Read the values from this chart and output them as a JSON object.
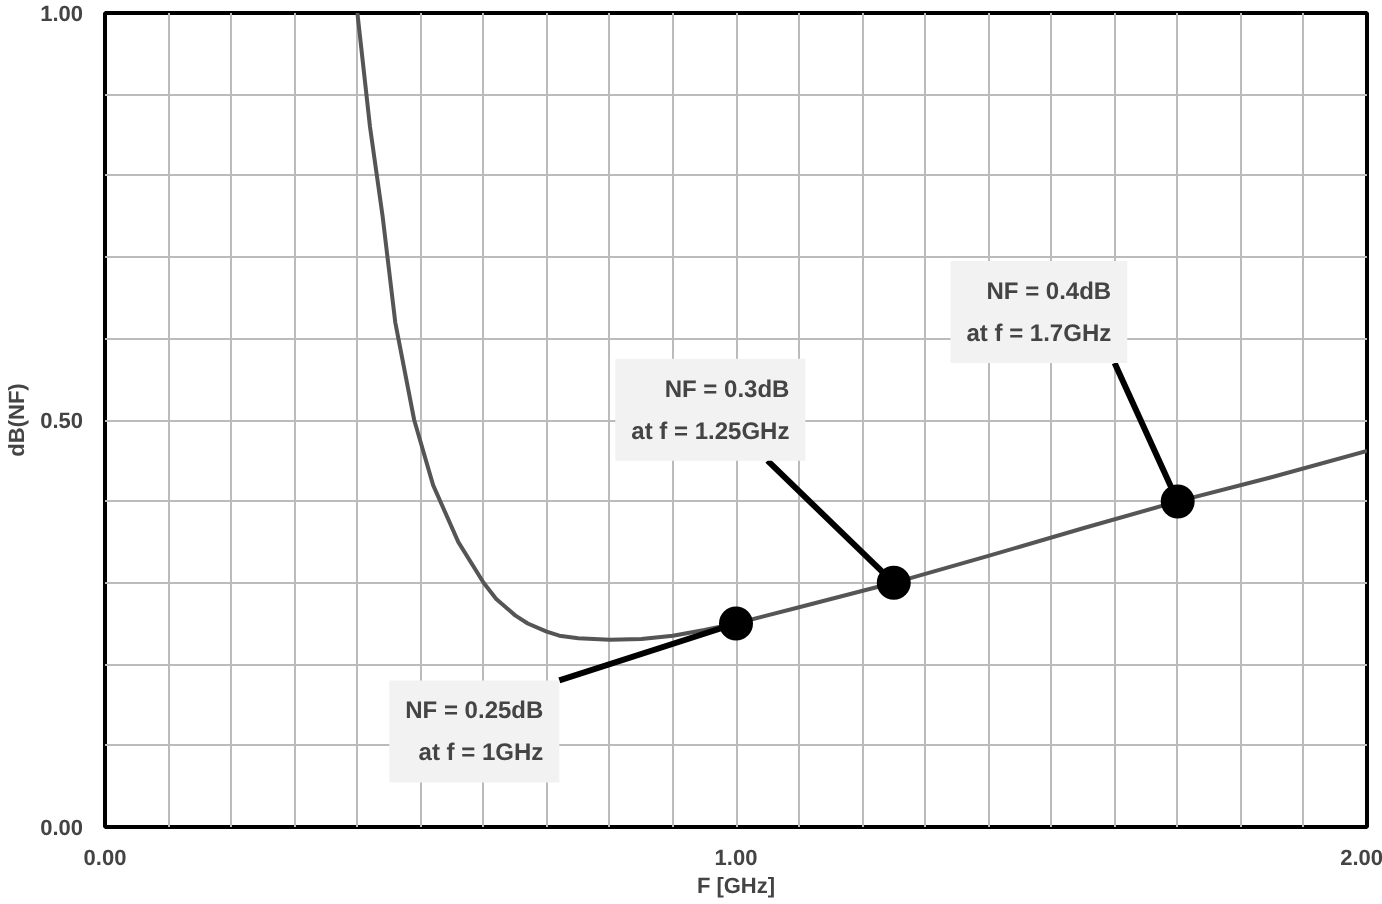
{
  "chart_data": {
    "type": "line",
    "xlabel": "F [GHz]",
    "ylabel": "dB(NF)",
    "xlim": [
      0,
      2
    ],
    "ylim": [
      0,
      1
    ],
    "xticks": [
      {
        "value": 0,
        "label": "0.00"
      },
      {
        "value": 0.1,
        "label": null
      },
      {
        "value": 0.2,
        "label": null
      },
      {
        "value": 0.3,
        "label": null
      },
      {
        "value": 0.4,
        "label": null
      },
      {
        "value": 0.5,
        "label": null
      },
      {
        "value": 0.6,
        "label": null
      },
      {
        "value": 0.7,
        "label": null
      },
      {
        "value": 0.8,
        "label": null
      },
      {
        "value": 0.9,
        "label": null
      },
      {
        "value": 1,
        "label": "1.00"
      },
      {
        "value": 1.1,
        "label": null
      },
      {
        "value": 1.2,
        "label": null
      },
      {
        "value": 1.3,
        "label": null
      },
      {
        "value": 1.4,
        "label": null
      },
      {
        "value": 1.5,
        "label": null
      },
      {
        "value": 1.6,
        "label": null
      },
      {
        "value": 1.7,
        "label": null
      },
      {
        "value": 1.8,
        "label": null
      },
      {
        "value": 1.9,
        "label": null
      },
      {
        "value": 2,
        "label": "2.00"
      }
    ],
    "yticks": [
      {
        "value": 0,
        "label": "0.00"
      },
      {
        "value": 0.1,
        "label": null
      },
      {
        "value": 0.2,
        "label": null
      },
      {
        "value": 0.3,
        "label": null
      },
      {
        "value": 0.4,
        "label": null
      },
      {
        "value": 0.5,
        "label": "0.50"
      },
      {
        "value": 0.6,
        "label": null
      },
      {
        "value": 0.7,
        "label": null
      },
      {
        "value": 0.8,
        "label": null
      },
      {
        "value": 0.9,
        "label": null
      },
      {
        "value": 1,
        "label": "1.00"
      }
    ],
    "grid": true,
    "marker": "none",
    "line_style": "solid",
    "series": [
      {
        "type": "line",
        "color": "#555555",
        "x": [
          0.4,
          0.42,
          0.44,
          0.46,
          0.49,
          0.52,
          0.56,
          0.6,
          0.62,
          0.65,
          0.67,
          0.7,
          0.72,
          0.75,
          0.8,
          0.85,
          0.9,
          0.95,
          1.0,
          1.1,
          1.25,
          1.4,
          1.55,
          1.7,
          1.85,
          2.0
        ],
        "values": [
          1.0,
          0.86,
          0.75,
          0.62,
          0.5,
          0.42,
          0.35,
          0.3,
          0.28,
          0.26,
          0.25,
          0.24,
          0.235,
          0.232,
          0.23,
          0.231,
          0.235,
          0.242,
          0.25,
          0.27,
          0.3,
          0.333,
          0.367,
          0.4,
          0.43,
          0.462
        ]
      },
      {
        "type": "scatter",
        "color": "#000000",
        "marker": "circle",
        "x": [
          1.0,
          1.25,
          1.7
        ],
        "values": [
          0.25,
          0.3,
          0.4
        ]
      }
    ],
    "annotations": [
      {
        "text": "NF = 0.25dB\nat f = 1GHz",
        "x": 1.0,
        "y": 0.25
      },
      {
        "text": "NF = 0.3dB\nat f = 1.25GHz",
        "x": 1.25,
        "y": 0.3
      },
      {
        "text": "NF = 0.4dB\nat f = 1.7GHz",
        "x": 1.7,
        "y": 0.4
      }
    ]
  }
}
